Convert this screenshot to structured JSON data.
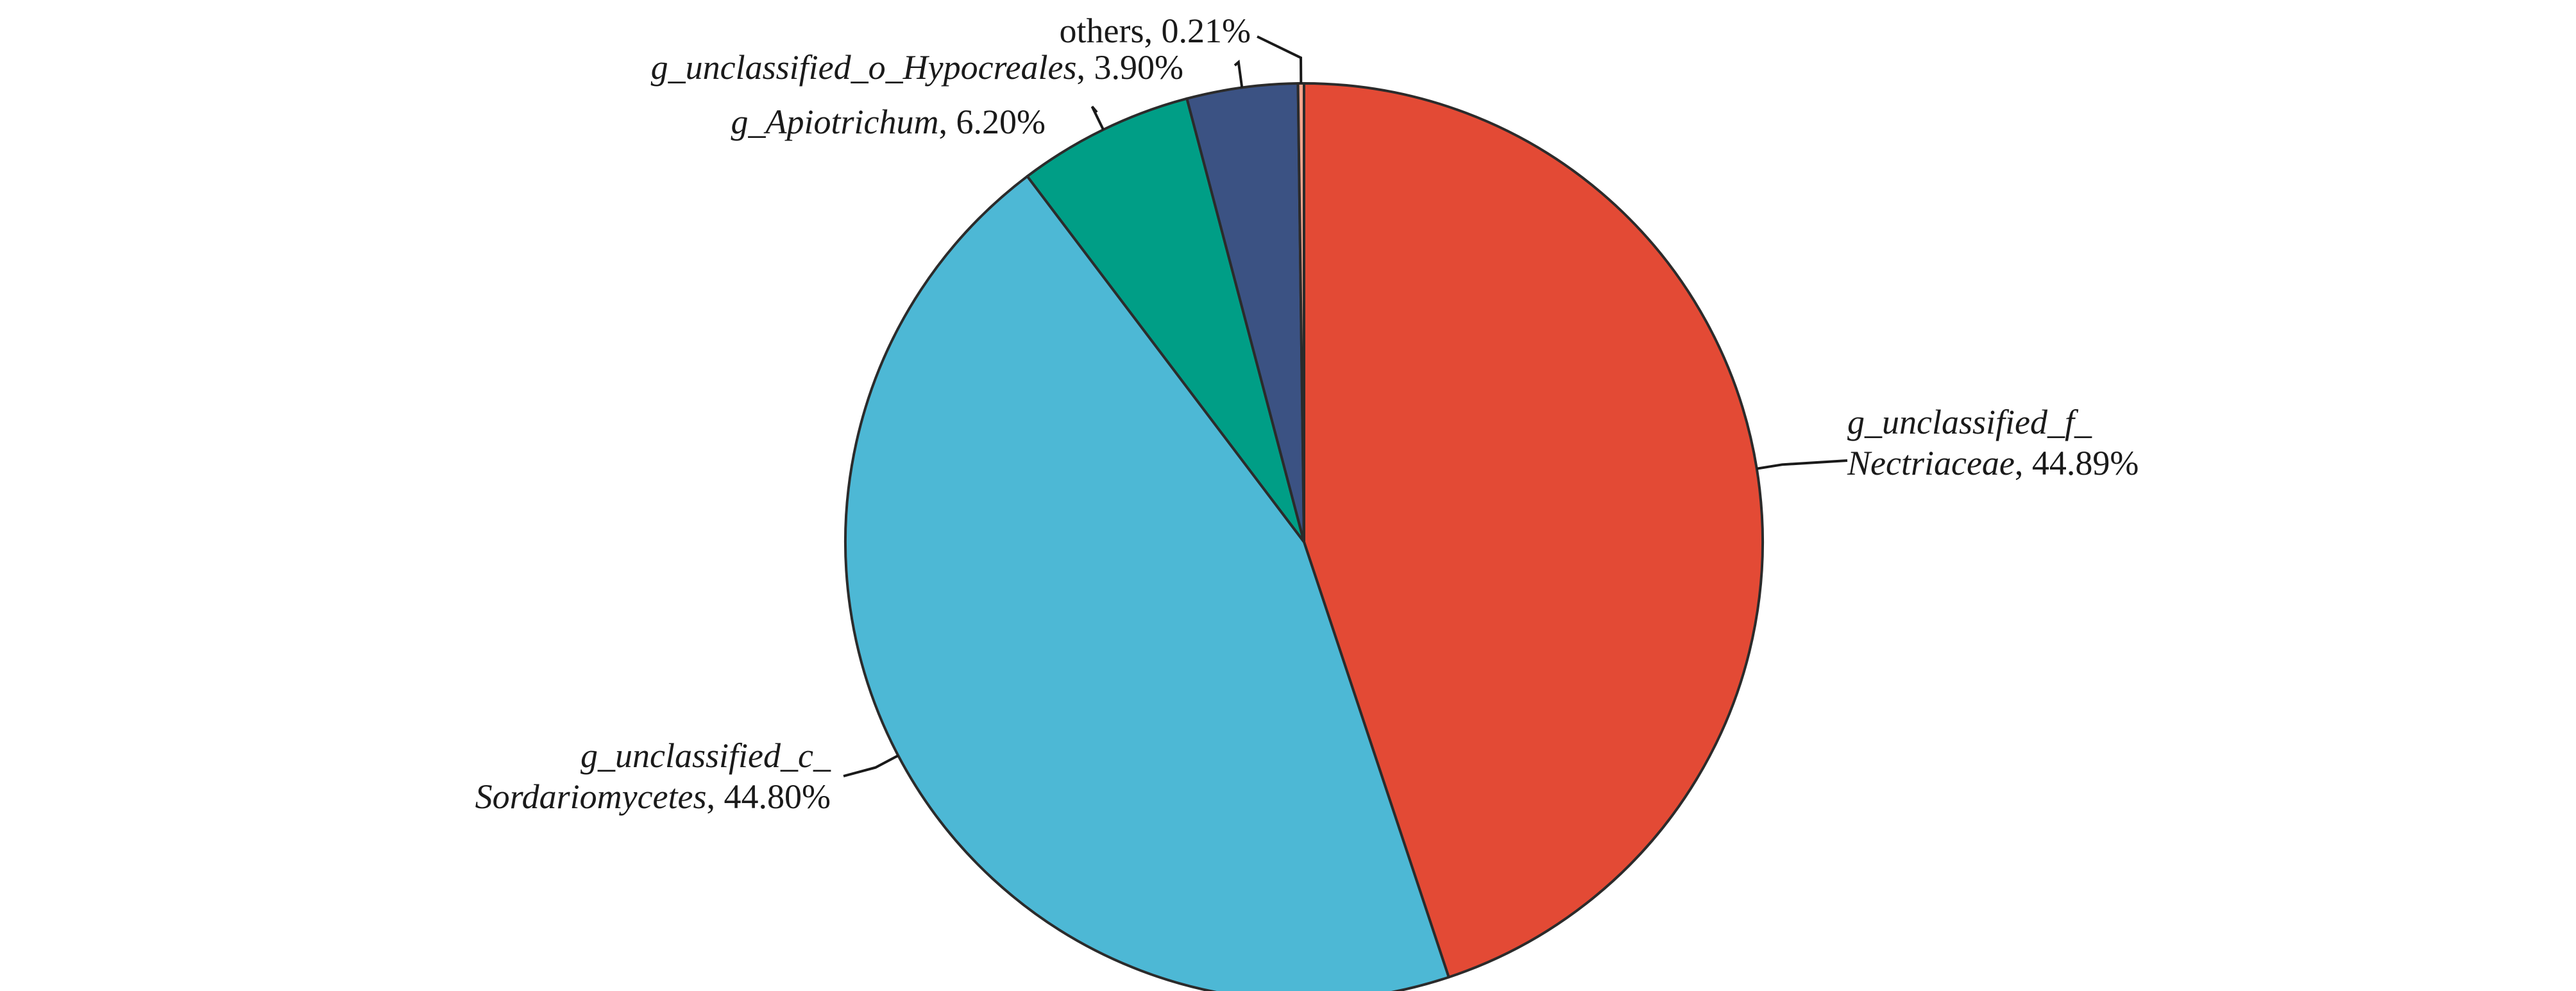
{
  "chart_data": {
    "type": "pie",
    "unit": "%",
    "slices": [
      {
        "label_lines": [
          [
            "g_unclassified_f_",
            ""
          ],
          [
            "Nectriaceae",
            ", 44.89%"
          ]
        ],
        "value": 44.89,
        "color": "#e34a35"
      },
      {
        "label_lines": [
          [
            "g_unclassified_c_",
            ""
          ],
          [
            "Sordariomycetes",
            ", 44.80%"
          ]
        ],
        "value": 44.8,
        "color": "#4db8d5"
      },
      {
        "label_lines": [
          [
            "g_Apiotrichum",
            ", 6.20%"
          ]
        ],
        "value": 6.2,
        "color": "#009e86"
      },
      {
        "label_lines": [
          [
            "g_unclassified_o_Hypocreales",
            ", 3.90%"
          ]
        ],
        "value": 3.9,
        "color": "#3b5283"
      },
      {
        "label_lines": [
          [
            "",
            "others, 0.21%"
          ]
        ],
        "value": 0.21,
        "color": "#f2a68f"
      }
    ]
  }
}
